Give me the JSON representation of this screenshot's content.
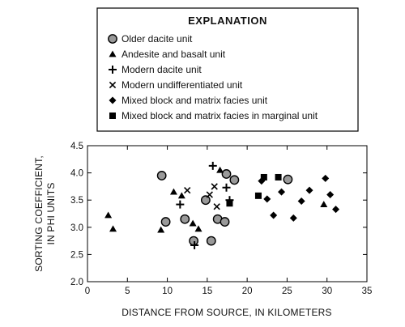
{
  "chart_data": {
    "type": "scatter",
    "legend": {
      "title": "EXPLANATION",
      "placement": "top"
    },
    "xlabel": "DISTANCE FROM SOURCE, IN KILOMETERS",
    "ylabel_line1": "SORTING COEFFICIENT,",
    "ylabel_line2": "IN PHI UNITS",
    "xlim": [
      0,
      35
    ],
    "ylim": [
      2.0,
      4.5
    ],
    "x_ticks": [
      0,
      5,
      10,
      15,
      20,
      25,
      30,
      35
    ],
    "y_ticks": [
      "2.0",
      "2.5",
      "3.0",
      "3.5",
      "4.0",
      "4.5"
    ],
    "grid": false,
    "series": [
      {
        "name": "Older dacite unit",
        "marker": "circle",
        "points": [
          [
            9.3,
            3.95
          ],
          [
            9.8,
            3.1
          ],
          [
            12.2,
            3.15
          ],
          [
            13.3,
            2.75
          ],
          [
            14.8,
            3.5
          ],
          [
            15.5,
            2.75
          ],
          [
            16.3,
            3.15
          ],
          [
            17.2,
            3.1
          ],
          [
            17.4,
            3.98
          ],
          [
            18.4,
            3.87
          ],
          [
            25.1,
            3.88
          ]
        ]
      },
      {
        "name": "Andesite and basalt unit",
        "marker": "triangle",
        "points": [
          [
            2.6,
            3.22
          ],
          [
            3.2,
            2.97
          ],
          [
            9.2,
            2.95
          ],
          [
            10.8,
            3.65
          ],
          [
            11.8,
            3.58
          ],
          [
            13.2,
            3.07
          ],
          [
            13.9,
            2.97
          ],
          [
            16.6,
            4.05
          ],
          [
            29.6,
            3.42
          ]
        ]
      },
      {
        "name": "Modern dacite unit",
        "marker": "plus",
        "points": [
          [
            11.6,
            3.42
          ],
          [
            13.4,
            2.67
          ],
          [
            15.7,
            4.13
          ],
          [
            17.4,
            3.73
          ],
          [
            17.8,
            3.5
          ]
        ]
      },
      {
        "name": "Modern undifferentiated unit",
        "marker": "x",
        "points": [
          [
            12.5,
            3.68
          ],
          [
            15.3,
            3.6
          ],
          [
            15.9,
            3.75
          ],
          [
            16.2,
            3.38
          ]
        ]
      },
      {
        "name": "Mixed block and matrix facies unit",
        "marker": "diamond",
        "points": [
          [
            21.8,
            3.85
          ],
          [
            22.5,
            3.52
          ],
          [
            23.3,
            3.22
          ],
          [
            24.3,
            3.65
          ],
          [
            25.8,
            3.17
          ],
          [
            26.8,
            3.48
          ],
          [
            27.8,
            3.68
          ],
          [
            29.8,
            3.9
          ],
          [
            30.4,
            3.6
          ],
          [
            31.1,
            3.33
          ]
        ]
      },
      {
        "name": "Mixed block and matrix facies in marginal unit",
        "marker": "square",
        "points": [
          [
            17.8,
            3.44
          ],
          [
            21.4,
            3.58
          ],
          [
            22.1,
            3.92
          ],
          [
            23.9,
            3.92
          ]
        ]
      }
    ]
  }
}
